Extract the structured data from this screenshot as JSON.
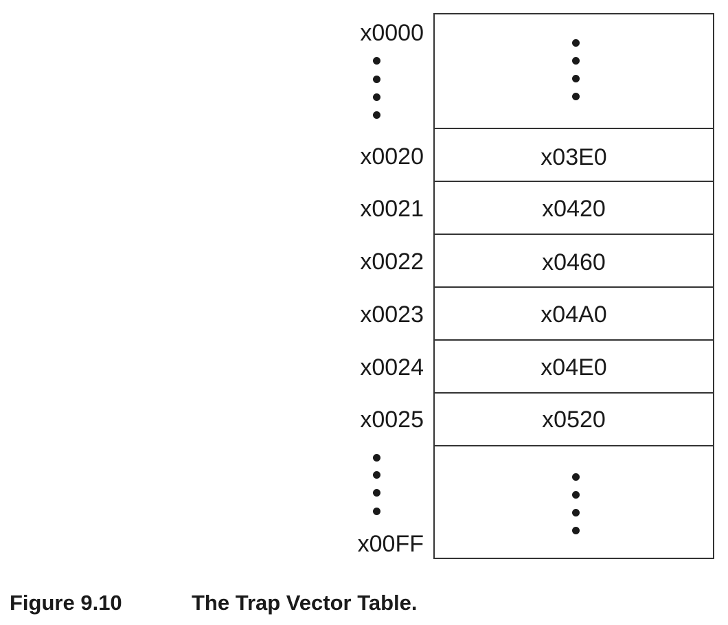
{
  "figure": {
    "number": "Figure 9.10",
    "title": "The Trap Vector Table."
  },
  "table": {
    "start_address": "x0000",
    "end_address": "x00FF",
    "rows": [
      {
        "address": "x0020",
        "value": "x03E0"
      },
      {
        "address": "x0021",
        "value": "x0420"
      },
      {
        "address": "x0022",
        "value": "x0460"
      },
      {
        "address": "x0023",
        "value": "x04A0"
      },
      {
        "address": "x0024",
        "value": "x04E0"
      },
      {
        "address": "x0025",
        "value": "x0520"
      }
    ]
  }
}
